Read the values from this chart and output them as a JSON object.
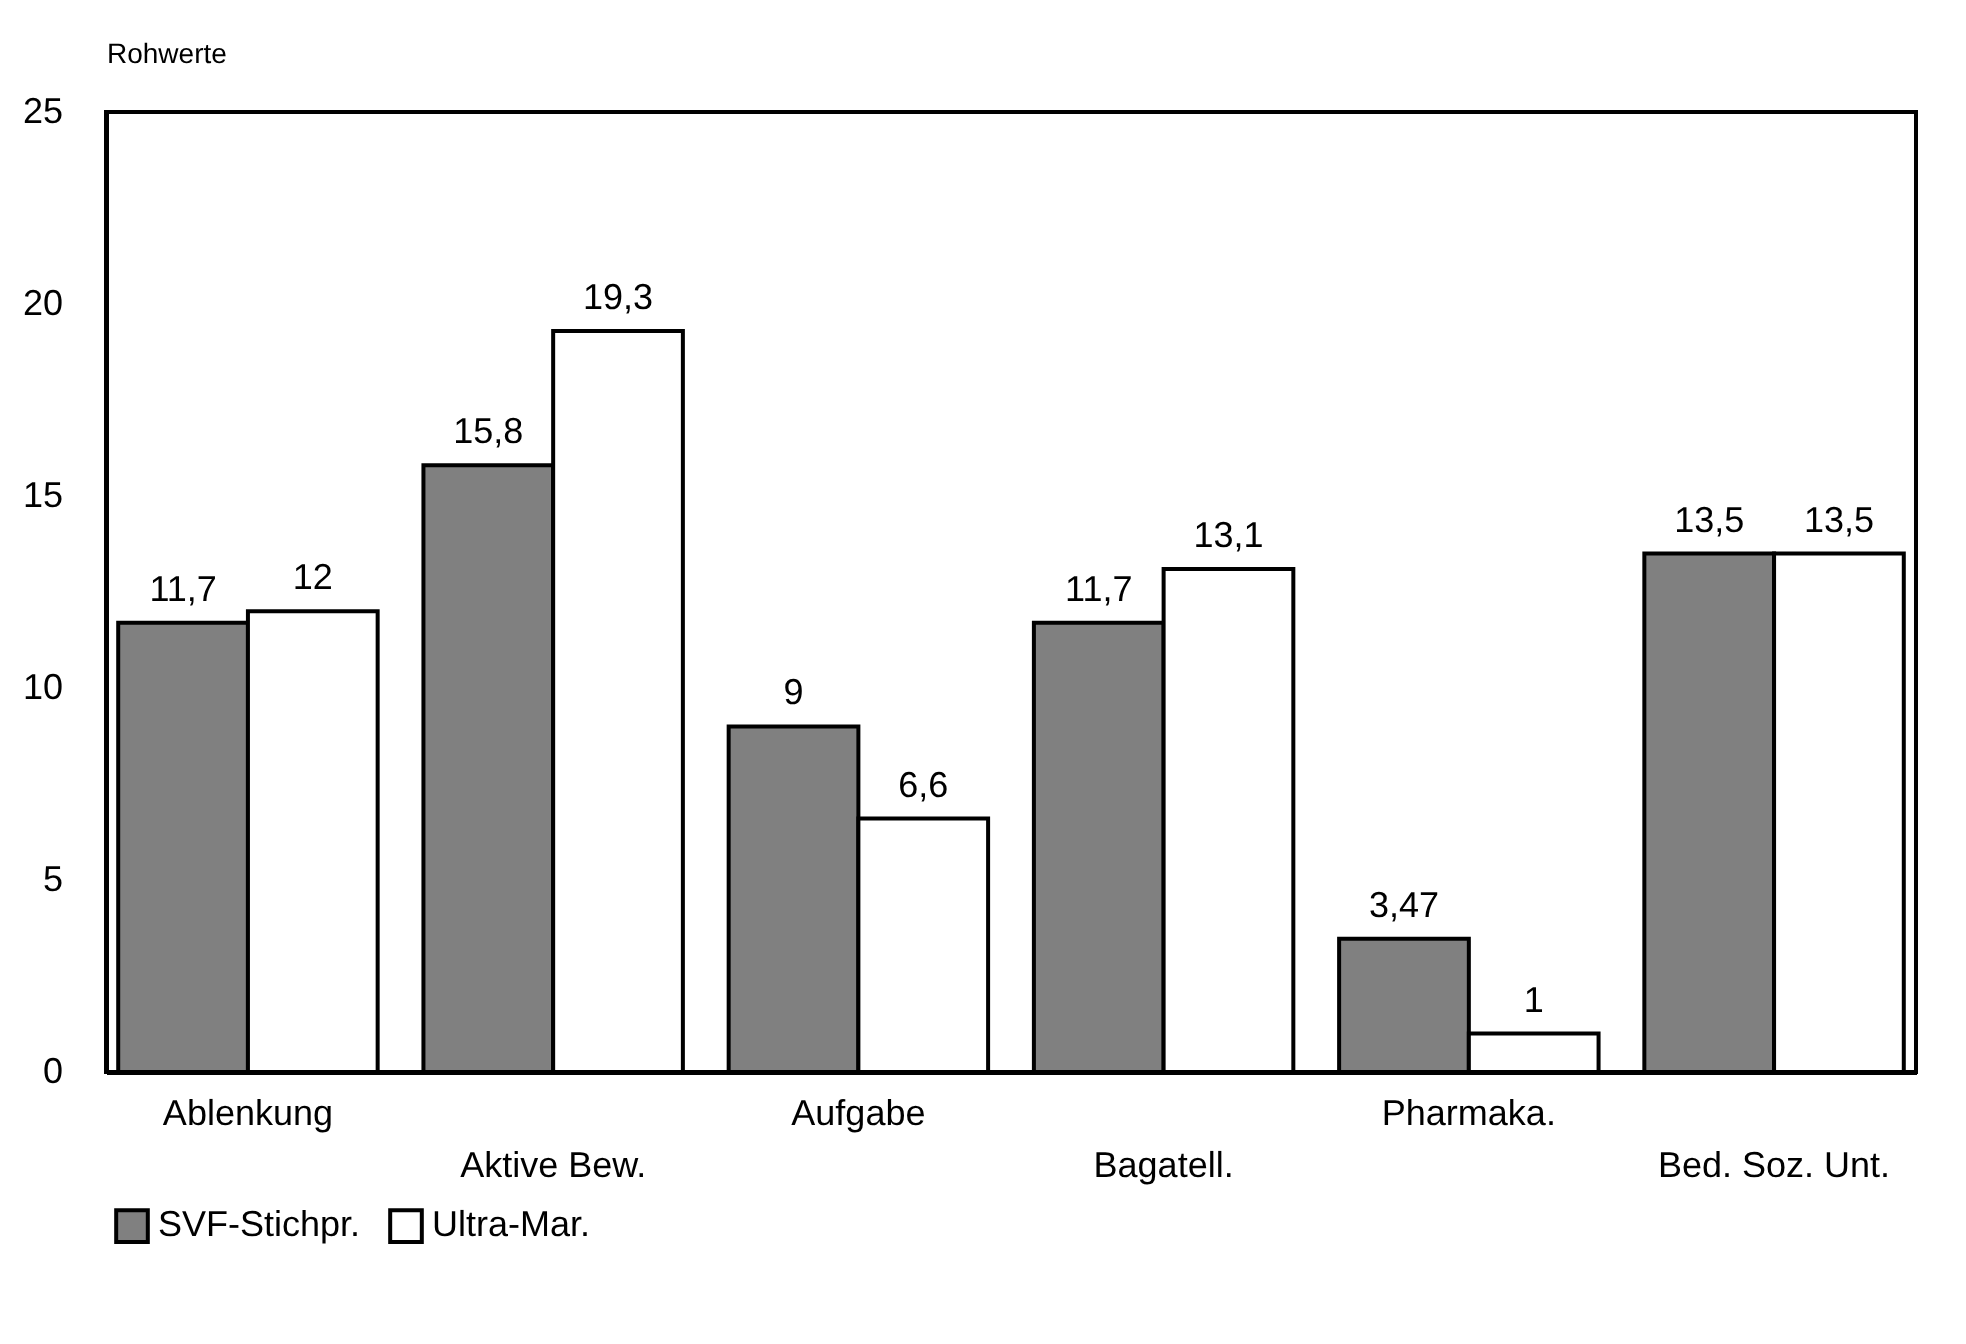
{
  "chart_data": {
    "type": "bar",
    "ylabel": "Rohwerte",
    "categories": [
      "Ablenkung",
      "Aktive Bew.",
      "Aufgabe",
      "Bagatell.",
      "Pharmaka.",
      "Bed. Soz. Unt."
    ],
    "series": [
      {
        "name": "SVF-Stichpr.",
        "color": "#808080",
        "values": [
          11.7,
          15.8,
          9,
          11.7,
          3.47,
          13.5
        ],
        "value_labels": [
          "11,7",
          "15,8",
          "9",
          "11,7",
          "3,47",
          "13,5"
        ]
      },
      {
        "name": "Ultra-Mar.",
        "color": "#ffffff",
        "values": [
          12,
          19.3,
          6.6,
          13.1,
          1,
          13.5
        ],
        "value_labels": [
          "12",
          "19,3",
          "6,6",
          "13,1",
          "1",
          "13,5"
        ]
      }
    ],
    "ylim": [
      0,
      25
    ],
    "yticks": [
      0,
      5,
      10,
      15,
      20,
      25
    ],
    "grid": false,
    "legend": "bottom"
  }
}
